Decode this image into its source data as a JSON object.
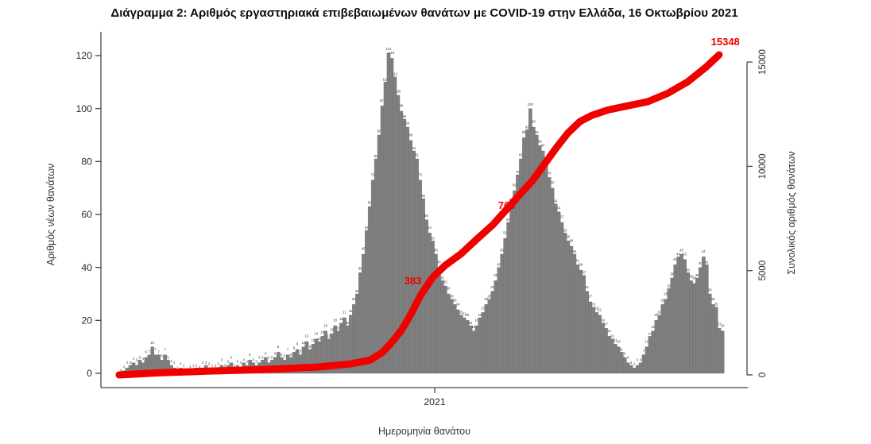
{
  "page": {
    "background": "#ffffff"
  },
  "chart_data": {
    "type": "combo-bar-line",
    "title": "Διάγραμμα 2: Αριθμός εργαστηριακά επιβεβαιωμένων θανάτων με COVID-19 στην Ελλάδα, 16 Οκτωβρίου 2021",
    "x_axis": {
      "label": "Ημερομηνία θανάτου",
      "tick_label": "2021",
      "tick_fraction": 0.516
    },
    "left_axis": {
      "label": "Αριθμός νέων θανάτων",
      "ticks": [
        0,
        20,
        40,
        60,
        80,
        100,
        120
      ],
      "range": [
        0,
        120
      ]
    },
    "right_axis": {
      "label": "Συνολικός αριθμός θανάτων",
      "ticks": [
        0,
        5000,
        10000,
        15000
      ],
      "range": [
        0,
        15000
      ]
    },
    "grid": false,
    "legend": "none",
    "bars": {
      "series_name": "daily-deaths",
      "color": "#7f7f7f",
      "edge_color": "#6b6b6b",
      "label_color": "#333333",
      "values": [
        0,
        1,
        2,
        3,
        4,
        3,
        5,
        4,
        6,
        7,
        10,
        7,
        7,
        5,
        7,
        5,
        3,
        2,
        1,
        2,
        1,
        0,
        1,
        1,
        2,
        1,
        2,
        3,
        2,
        1,
        2,
        2,
        3,
        2,
        3,
        4,
        2,
        3,
        2,
        4,
        3,
        5,
        4,
        3,
        4,
        5,
        6,
        4,
        5,
        6,
        8,
        6,
        5,
        7,
        6,
        8,
        9,
        7,
        10,
        12,
        9,
        11,
        13,
        12,
        14,
        16,
        13,
        15,
        18,
        16,
        19,
        21,
        18,
        22,
        26,
        30,
        38,
        45,
        54,
        63,
        73,
        81,
        90,
        101,
        110,
        121,
        119,
        112,
        105,
        99,
        96,
        93,
        88,
        84,
        81,
        73,
        66,
        58,
        53,
        50,
        45,
        40,
        35,
        33,
        30,
        28,
        26,
        24,
        22,
        21,
        20,
        18,
        16,
        18,
        21,
        23,
        26,
        28,
        31,
        35,
        40,
        45,
        51,
        57,
        64,
        69,
        75,
        81,
        89,
        92,
        100,
        93,
        90,
        86,
        84,
        79,
        74,
        70,
        64,
        61,
        57,
        53,
        50,
        48,
        45,
        41,
        39,
        37,
        31,
        27,
        25,
        23,
        22,
        19,
        17,
        14,
        13,
        11,
        10,
        8,
        6,
        4,
        3,
        2,
        3,
        4,
        7,
        10,
        14,
        16,
        20,
        22,
        26,
        28,
        32,
        36,
        41,
        44,
        45,
        43,
        38,
        35,
        34,
        36,
        40,
        44,
        41,
        30,
        26,
        25,
        17,
        16
      ]
    },
    "line": {
      "series_name": "cumulative-deaths",
      "color": "#f10000",
      "final_value": 15348,
      "milestone_labels": [
        {
          "text": "383",
          "xf": 0.5,
          "value": 4350,
          "covered": true
        },
        {
          "text": "769",
          "xf": 0.655,
          "value": 7950,
          "covered": true
        },
        {
          "text": "15348",
          "xf": 1.026,
          "value": 15800,
          "covered": false
        }
      ],
      "anchors": [
        [
          0.0,
          0
        ],
        [
          0.066,
          100
        ],
        [
          0.145,
          180
        ],
        [
          0.236,
          250
        ],
        [
          0.329,
          380
        ],
        [
          0.381,
          520
        ],
        [
          0.414,
          700
        ],
        [
          0.434,
          1050
        ],
        [
          0.449,
          1500
        ],
        [
          0.467,
          2150
        ],
        [
          0.484,
          3000
        ],
        [
          0.499,
          3850
        ],
        [
          0.519,
          4700
        ],
        [
          0.539,
          5250
        ],
        [
          0.565,
          5800
        ],
        [
          0.591,
          6500
        ],
        [
          0.618,
          7200
        ],
        [
          0.641,
          7950
        ],
        [
          0.664,
          8700
        ],
        [
          0.683,
          9300
        ],
        [
          0.703,
          10100
        ],
        [
          0.723,
          10900
        ],
        [
          0.742,
          11600
        ],
        [
          0.762,
          12150
        ],
        [
          0.782,
          12450
        ],
        [
          0.808,
          12700
        ],
        [
          0.841,
          12900
        ],
        [
          0.874,
          13100
        ],
        [
          0.907,
          13500
        ],
        [
          0.94,
          14050
        ],
        [
          0.97,
          14750
        ],
        [
          0.992,
          15348
        ]
      ]
    }
  }
}
